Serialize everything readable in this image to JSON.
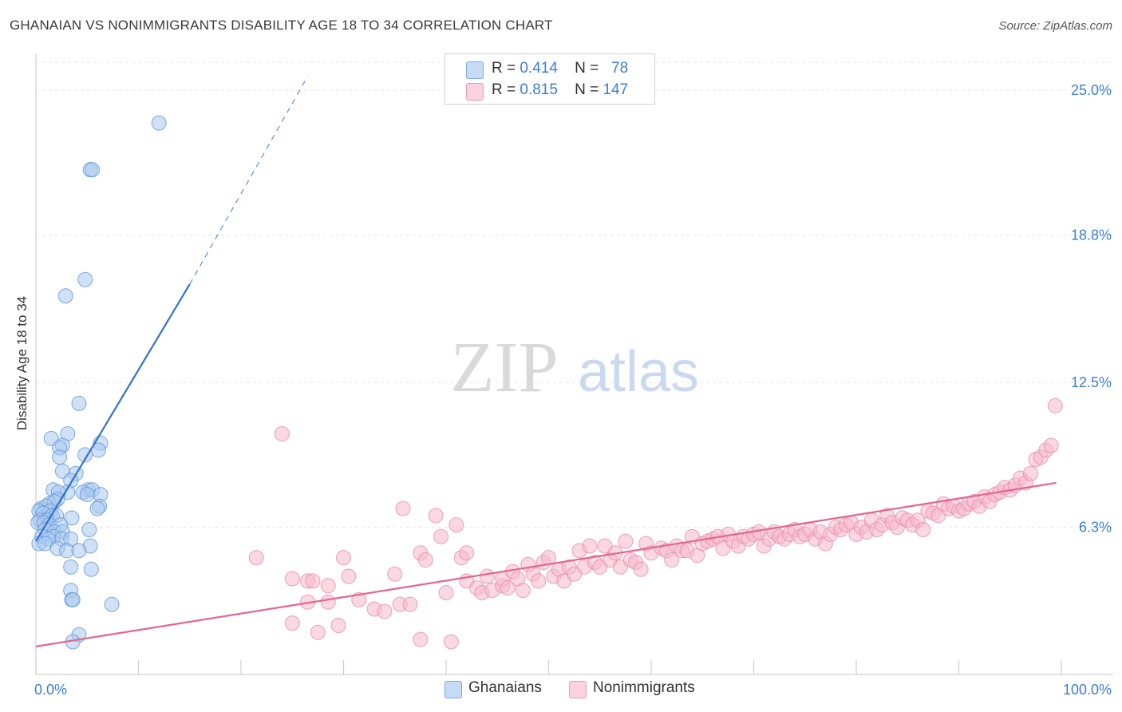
{
  "header": {
    "title": "GHANAIAN VS NONIMMIGRANTS DISABILITY AGE 18 TO 34 CORRELATION CHART",
    "source": "Source: ZipAtlas.com"
  },
  "watermark": {
    "zip": "ZIP",
    "atlas": "atlas"
  },
  "legend": {
    "rows": [
      {
        "r_label": "R =",
        "r_value": "0.414",
        "n_label": "N =",
        "n_value": "78",
        "color": "#a9c8ef"
      },
      {
        "r_label": "R =",
        "r_value": "0.815",
        "n_label": "N =",
        "n_value": "147",
        "color": "#f6b8cb"
      }
    ]
  },
  "bottom_legend": [
    {
      "label": "Ghanaians",
      "color": "#a9c8ef"
    },
    {
      "label": "Nonimmigrants",
      "color": "#f6b8cb"
    }
  ],
  "colors": {
    "blue_point": "#a9c8ef",
    "blue_stroke": "#5e95dc",
    "blue_line": "#2f72d1",
    "pink_point": "#f6b8cb",
    "pink_stroke": "#e98aa8",
    "pink_line": "#e4658f",
    "tick_label": "#3b7dd8",
    "grid": "#e6e6e6"
  },
  "chart_data": {
    "type": "scatter",
    "title": "GHANAIAN VS NONIMMIGRANTS DISABILITY AGE 18 TO 34 CORRELATION CHART",
    "xlabel": "",
    "ylabel": "Disability Age 18 to 34",
    "xlim": [
      0,
      100
    ],
    "ylim": [
      0,
      26.2
    ],
    "x_tick_labels": [
      "0.0%",
      "100.0%"
    ],
    "y_ticks": [
      6.3,
      12.5,
      18.8,
      25.0
    ],
    "y_tick_labels": [
      "6.3%",
      "12.5%",
      "18.8%",
      "25.0%"
    ],
    "grid": true,
    "legend_position": "top-center",
    "series": [
      {
        "name": "Ghanaians",
        "points": [
          [
            12.0,
            23.6
          ],
          [
            5.3,
            21.6
          ],
          [
            5.5,
            21.6
          ],
          [
            4.8,
            16.9
          ],
          [
            2.9,
            16.2
          ],
          [
            4.2,
            11.6
          ],
          [
            3.1,
            10.3
          ],
          [
            1.5,
            10.1
          ],
          [
            6.3,
            9.9
          ],
          [
            2.6,
            9.8
          ],
          [
            2.3,
            9.7
          ],
          [
            6.1,
            9.6
          ],
          [
            4.8,
            9.4
          ],
          [
            2.3,
            9.3
          ],
          [
            2.6,
            8.7
          ],
          [
            3.9,
            8.6
          ],
          [
            3.4,
            8.3
          ],
          [
            1.7,
            7.9
          ],
          [
            3.1,
            7.8
          ],
          [
            5.1,
            7.9
          ],
          [
            4.6,
            7.8
          ],
          [
            2.2,
            7.8
          ],
          [
            5.5,
            7.9
          ],
          [
            6.3,
            7.7
          ],
          [
            5.0,
            7.7
          ],
          [
            2.1,
            7.5
          ],
          [
            1.3,
            7.3
          ],
          [
            1.8,
            7.4
          ],
          [
            6.2,
            7.2
          ],
          [
            6.0,
            7.1
          ],
          [
            0.5,
            7.1
          ],
          [
            1.0,
            7.2
          ],
          [
            0.3,
            7.0
          ],
          [
            1.4,
            7.0
          ],
          [
            0.7,
            6.9
          ],
          [
            1.6,
            6.8
          ],
          [
            2.0,
            6.8
          ],
          [
            3.5,
            6.7
          ],
          [
            0.4,
            6.6
          ],
          [
            1.1,
            6.6
          ],
          [
            0.2,
            6.5
          ],
          [
            0.8,
            6.5
          ],
          [
            1.3,
            6.4
          ],
          [
            2.4,
            6.4
          ],
          [
            0.9,
            6.2
          ],
          [
            1.8,
            6.1
          ],
          [
            2.6,
            6.1
          ],
          [
            5.2,
            6.2
          ],
          [
            0.6,
            5.9
          ],
          [
            1.7,
            5.9
          ],
          [
            2.5,
            5.8
          ],
          [
            1.2,
            5.8
          ],
          [
            3.4,
            5.8
          ],
          [
            0.3,
            5.6
          ],
          [
            0.9,
            5.6
          ],
          [
            2.1,
            5.4
          ],
          [
            5.3,
            5.5
          ],
          [
            3.0,
            5.3
          ],
          [
            4.2,
            5.3
          ],
          [
            3.4,
            4.6
          ],
          [
            5.4,
            4.5
          ],
          [
            3.4,
            3.6
          ],
          [
            3.5,
            3.2
          ],
          [
            3.6,
            3.2
          ],
          [
            7.4,
            3.0
          ],
          [
            4.2,
            1.7
          ],
          [
            3.6,
            1.4
          ]
        ]
      },
      {
        "name": "Nonimmigrants",
        "points": [
          [
            24.0,
            10.3
          ],
          [
            21.5,
            5.0
          ],
          [
            25.0,
            4.1
          ],
          [
            26.5,
            4.0
          ],
          [
            27.0,
            4.0
          ],
          [
            28.5,
            3.8
          ],
          [
            30.5,
            4.2
          ],
          [
            30.0,
            5.0
          ],
          [
            26.5,
            3.1
          ],
          [
            28.5,
            3.1
          ],
          [
            31.5,
            3.2
          ],
          [
            25.0,
            2.2
          ],
          [
            27.5,
            1.8
          ],
          [
            29.5,
            2.1
          ],
          [
            33.0,
            2.8
          ],
          [
            34.0,
            2.7
          ],
          [
            35.5,
            3.0
          ],
          [
            36.5,
            3.0
          ],
          [
            37.5,
            1.5
          ],
          [
            40.5,
            1.4
          ],
          [
            35.0,
            4.3
          ],
          [
            35.8,
            7.1
          ],
          [
            37.5,
            5.2
          ],
          [
            38.0,
            4.9
          ],
          [
            39.0,
            6.8
          ],
          [
            39.5,
            5.9
          ],
          [
            40.0,
            3.5
          ],
          [
            41.0,
            6.4
          ],
          [
            41.5,
            5.0
          ],
          [
            42.0,
            5.2
          ],
          [
            42.0,
            4.0
          ],
          [
            43.0,
            3.7
          ],
          [
            43.5,
            3.5
          ],
          [
            44.0,
            4.2
          ],
          [
            44.5,
            3.6
          ],
          [
            45.5,
            3.8
          ],
          [
            45.5,
            4.1
          ],
          [
            46.0,
            3.7
          ],
          [
            46.5,
            4.4
          ],
          [
            47.0,
            4.1
          ],
          [
            47.5,
            3.6
          ],
          [
            48.0,
            4.7
          ],
          [
            48.5,
            4.3
          ],
          [
            49.0,
            4.0
          ],
          [
            49.5,
            4.8
          ],
          [
            50.0,
            5.0
          ],
          [
            50.5,
            4.2
          ],
          [
            51.0,
            4.5
          ],
          [
            51.5,
            4.0
          ],
          [
            52.0,
            4.6
          ],
          [
            52.5,
            4.3
          ],
          [
            53.0,
            5.3
          ],
          [
            53.5,
            4.6
          ],
          [
            54.0,
            5.5
          ],
          [
            54.5,
            4.8
          ],
          [
            55.0,
            4.6
          ],
          [
            55.5,
            5.5
          ],
          [
            56.0,
            4.9
          ],
          [
            56.5,
            5.2
          ],
          [
            57.0,
            4.6
          ],
          [
            57.5,
            5.7
          ],
          [
            58.0,
            4.9
          ],
          [
            58.5,
            4.8
          ],
          [
            59.0,
            4.5
          ],
          [
            59.5,
            5.6
          ],
          [
            60.0,
            5.2
          ],
          [
            61.0,
            5.4
          ],
          [
            61.5,
            5.3
          ],
          [
            62.0,
            4.9
          ],
          [
            62.5,
            5.5
          ],
          [
            63.0,
            5.3
          ],
          [
            63.5,
            5.3
          ],
          [
            64.0,
            5.9
          ],
          [
            64.5,
            5.1
          ],
          [
            65.0,
            5.6
          ],
          [
            65.5,
            5.7
          ],
          [
            66.0,
            5.8
          ],
          [
            66.5,
            5.9
          ],
          [
            67.0,
            5.4
          ],
          [
            67.5,
            6.0
          ],
          [
            68.0,
            5.7
          ],
          [
            68.5,
            5.5
          ],
          [
            69.0,
            5.9
          ],
          [
            69.5,
            5.8
          ],
          [
            70.0,
            6.0
          ],
          [
            70.5,
            6.1
          ],
          [
            71.0,
            5.5
          ],
          [
            71.5,
            5.8
          ],
          [
            72.0,
            6.1
          ],
          [
            72.5,
            5.9
          ],
          [
            73.0,
            5.8
          ],
          [
            73.5,
            6.0
          ],
          [
            74.0,
            6.2
          ],
          [
            74.5,
            5.9
          ],
          [
            75.0,
            6.0
          ],
          [
            75.5,
            6.2
          ],
          [
            76.0,
            5.8
          ],
          [
            76.5,
            6.1
          ],
          [
            77.0,
            5.6
          ],
          [
            77.5,
            6.0
          ],
          [
            78.0,
            6.3
          ],
          [
            78.5,
            6.2
          ],
          [
            79.0,
            6.4
          ],
          [
            79.5,
            6.5
          ],
          [
            80.0,
            6.0
          ],
          [
            80.5,
            6.3
          ],
          [
            81.0,
            6.1
          ],
          [
            81.5,
            6.6
          ],
          [
            82.0,
            6.2
          ],
          [
            82.5,
            6.4
          ],
          [
            83.0,
            6.8
          ],
          [
            83.5,
            6.5
          ],
          [
            84.0,
            6.3
          ],
          [
            84.5,
            6.7
          ],
          [
            85.0,
            6.6
          ],
          [
            85.5,
            6.4
          ],
          [
            86.0,
            6.6
          ],
          [
            86.5,
            6.2
          ],
          [
            87.0,
            7.0
          ],
          [
            87.5,
            6.9
          ],
          [
            88.0,
            6.8
          ],
          [
            88.5,
            7.3
          ],
          [
            89.0,
            7.1
          ],
          [
            89.5,
            7.2
          ],
          [
            90.0,
            7.0
          ],
          [
            90.5,
            7.1
          ],
          [
            91.0,
            7.3
          ],
          [
            91.5,
            7.4
          ],
          [
            92.0,
            7.2
          ],
          [
            92.5,
            7.6
          ],
          [
            93.0,
            7.4
          ],
          [
            93.5,
            7.7
          ],
          [
            94.0,
            7.8
          ],
          [
            94.5,
            8.0
          ],
          [
            95.0,
            7.9
          ],
          [
            95.5,
            8.1
          ],
          [
            96.0,
            8.4
          ],
          [
            96.5,
            8.2
          ],
          [
            97.0,
            8.6
          ],
          [
            97.5,
            9.2
          ],
          [
            98.0,
            9.3
          ],
          [
            98.5,
            9.6
          ],
          [
            99.0,
            9.8
          ],
          [
            99.4,
            11.5
          ]
        ]
      }
    ],
    "trend_lines": [
      {
        "series": "Ghanaians",
        "from": [
          0,
          5.7
        ],
        "to": [
          15.0,
          16.7
        ],
        "extended_to": [
          26.5,
          25.6
        ],
        "extension_style": "dashed"
      },
      {
        "series": "Nonimmigrants",
        "from": [
          0,
          1.2
        ],
        "to": [
          99.5,
          8.2
        ]
      }
    ]
  }
}
